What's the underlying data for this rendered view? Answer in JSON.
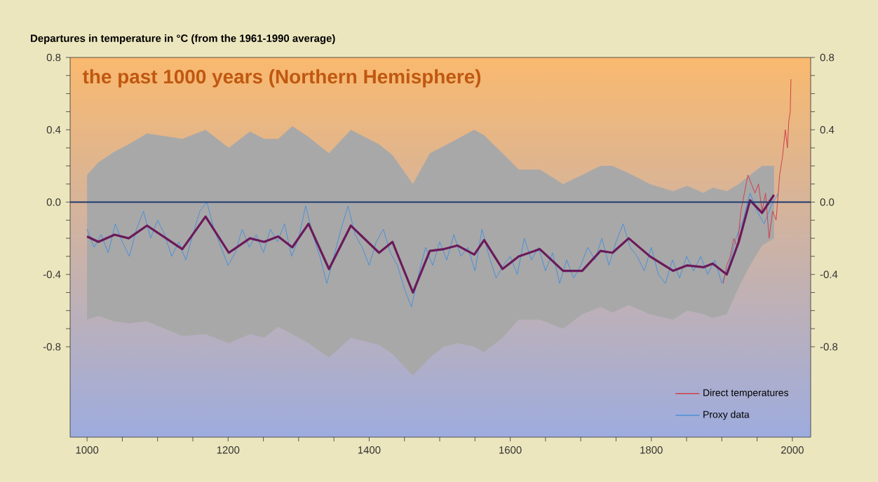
{
  "chart_data": {
    "type": "line",
    "title": "the past 1000 years (Northern Hemisphere)",
    "ylabel": "Departures in temperature in °C (from the 1961-1990 average)",
    "xlim": [
      976,
      2026
    ],
    "ylim": [
      -1.3,
      0.8
    ],
    "y2lim": [
      -1.3,
      0.8
    ],
    "xticks": [
      {
        "value": 1000,
        "label": "1000"
      },
      {
        "value": 1050,
        "label": null
      },
      {
        "value": 1100,
        "label": null
      },
      {
        "value": 1150,
        "label": null
      },
      {
        "value": 1200,
        "label": "1200"
      },
      {
        "value": 1250,
        "label": null
      },
      {
        "value": 1300,
        "label": null
      },
      {
        "value": 1350,
        "label": null
      },
      {
        "value": 1400,
        "label": "1400"
      },
      {
        "value": 1450,
        "label": null
      },
      {
        "value": 1500,
        "label": null
      },
      {
        "value": 1550,
        "label": null
      },
      {
        "value": 1600,
        "label": "1600"
      },
      {
        "value": 1650,
        "label": null
      },
      {
        "value": 1700,
        "label": null
      },
      {
        "value": 1750,
        "label": null
      },
      {
        "value": 1800,
        "label": "1800"
      },
      {
        "value": 1850,
        "label": null
      },
      {
        "value": 1900,
        "label": null
      },
      {
        "value": 1950,
        "label": null
      },
      {
        "value": 2000,
        "label": "2000"
      }
    ],
    "yticks": [
      {
        "value": -0.8,
        "label": "-0.8"
      },
      {
        "value": -0.7,
        "label": null
      },
      {
        "value": -0.6,
        "label": null
      },
      {
        "value": -0.5,
        "label": null
      },
      {
        "value": -0.4,
        "label": "-0.4"
      },
      {
        "value": -0.3,
        "label": null
      },
      {
        "value": -0.2,
        "label": null
      },
      {
        "value": -0.1,
        "label": null
      },
      {
        "value": 0,
        "label": "0.0"
      },
      {
        "value": 0.1,
        "label": null
      },
      {
        "value": 0.2,
        "label": null
      },
      {
        "value": 0.3,
        "label": null
      },
      {
        "value": 0.4,
        "label": "0.4"
      },
      {
        "value": 0.5,
        "label": null
      },
      {
        "value": 0.6,
        "label": null
      },
      {
        "value": 0.7,
        "label": null
      },
      {
        "value": 0.8,
        "label": "0.8"
      }
    ],
    "y2ticks": [
      {
        "value": -0.8,
        "label": "-0.8"
      },
      {
        "value": -0.7,
        "label": null
      },
      {
        "value": -0.6,
        "label": null
      },
      {
        "value": -0.5,
        "label": null
      },
      {
        "value": -0.4,
        "label": "-0.4"
      },
      {
        "value": -0.3,
        "label": null
      },
      {
        "value": -0.2,
        "label": null
      },
      {
        "value": -0.1,
        "label": null
      },
      {
        "value": 0,
        "label": "0.0"
      },
      {
        "value": 0.1,
        "label": null
      },
      {
        "value": 0.2,
        "label": null
      },
      {
        "value": 0.3,
        "label": null
      },
      {
        "value": 0.4,
        "label": "0.4"
      },
      {
        "value": 0.5,
        "label": null
      },
      {
        "value": 0.6,
        "label": null
      },
      {
        "value": 0.7,
        "label": null
      },
      {
        "value": 0.8,
        "label": "0.8"
      }
    ],
    "grid": false,
    "legend": "bottom right",
    "marker": "none",
    "line_style": "solid",
    "ref_lines": [
      {
        "axis": "y",
        "value": 0,
        "color": "#1f3a6e"
      }
    ],
    "series": [
      {
        "name": "Direct temperatures",
        "color": "#d0404a",
        "x": [
          1902,
          1907,
          1912,
          1917,
          1922,
          1927,
          1932,
          1937,
          1942,
          1947,
          1952,
          1957,
          1962,
          1967,
          1972,
          1977,
          1982,
          1986,
          1990,
          1993,
          1995,
          1997,
          1998
        ],
        "values": [
          -0.45,
          -0.35,
          -0.3,
          -0.2,
          -0.25,
          -0.05,
          0.05,
          0.15,
          0.1,
          0.05,
          0.1,
          -0.05,
          0.05,
          -0.2,
          -0.05,
          -0.1,
          0.15,
          0.25,
          0.4,
          0.3,
          0.45,
          0.5,
          0.68
        ]
      },
      {
        "name": "Proxy data",
        "color": "#4a90d9",
        "x": [
          1000,
          1010,
          1020,
          1030,
          1040,
          1050,
          1060,
          1070,
          1080,
          1090,
          1100,
          1110,
          1120,
          1130,
          1140,
          1150,
          1160,
          1170,
          1180,
          1190,
          1200,
          1210,
          1220,
          1230,
          1240,
          1250,
          1260,
          1270,
          1280,
          1290,
          1300,
          1310,
          1320,
          1330,
          1340,
          1350,
          1360,
          1370,
          1380,
          1390,
          1400,
          1410,
          1420,
          1430,
          1440,
          1450,
          1460,
          1470,
          1480,
          1490,
          1500,
          1510,
          1520,
          1530,
          1540,
          1550,
          1560,
          1570,
          1580,
          1590,
          1600,
          1610,
          1620,
          1630,
          1640,
          1650,
          1660,
          1670,
          1680,
          1690,
          1700,
          1710,
          1720,
          1730,
          1740,
          1750,
          1760,
          1770,
          1780,
          1790,
          1800,
          1810,
          1820,
          1830,
          1840,
          1850,
          1860,
          1870,
          1880,
          1890,
          1900,
          1910,
          1920,
          1930,
          1940,
          1950,
          1960,
          1970,
          1980
        ],
        "values": [
          -0.15,
          -0.25,
          -0.18,
          -0.28,
          -0.12,
          -0.22,
          -0.3,
          -0.15,
          -0.05,
          -0.2,
          -0.1,
          -0.18,
          -0.3,
          -0.22,
          -0.32,
          -0.18,
          -0.05,
          0.0,
          -0.15,
          -0.25,
          -0.35,
          -0.28,
          -0.15,
          -0.25,
          -0.18,
          -0.28,
          -0.15,
          -0.22,
          -0.12,
          -0.3,
          -0.2,
          -0.02,
          -0.18,
          -0.3,
          -0.45,
          -0.3,
          -0.15,
          -0.02,
          -0.18,
          -0.25,
          -0.35,
          -0.22,
          -0.15,
          -0.28,
          -0.35,
          -0.48,
          -0.58,
          -0.4,
          -0.25,
          -0.35,
          -0.22,
          -0.32,
          -0.18,
          -0.3,
          -0.25,
          -0.38,
          -0.15,
          -0.3,
          -0.42,
          -0.35,
          -0.3,
          -0.4,
          -0.2,
          -0.32,
          -0.25,
          -0.38,
          -0.28,
          -0.45,
          -0.32,
          -0.42,
          -0.35,
          -0.25,
          -0.32,
          -0.2,
          -0.35,
          -0.22,
          -0.12,
          -0.25,
          -0.3,
          -0.38,
          -0.25,
          -0.4,
          -0.45,
          -0.32,
          -0.42,
          -0.3,
          -0.38,
          -0.3,
          -0.4,
          -0.32,
          -0.45,
          -0.35,
          -0.2,
          -0.1,
          0.05,
          -0.05,
          -0.12,
          -0.02,
          0.05
        ]
      },
      {
        "color": "#6a1a5a",
        "x": [
          1000,
          1016,
          1039,
          1059,
          1085,
          1135,
          1168,
          1201,
          1231,
          1251,
          1271,
          1291,
          1314,
          1343,
          1374,
          1414,
          1433,
          1462,
          1486,
          1506,
          1525,
          1549,
          1563,
          1589,
          1612,
          1642,
          1675,
          1702,
          1728,
          1745,
          1768,
          1798,
          1831,
          1851,
          1874,
          1887,
          1907,
          1924,
          1940,
          1957,
          1974
        ],
        "values": [
          -0.19,
          -0.22,
          -0.18,
          -0.2,
          -0.13,
          -0.26,
          -0.08,
          -0.28,
          -0.2,
          -0.22,
          -0.19,
          -0.25,
          -0.12,
          -0.37,
          -0.13,
          -0.28,
          -0.22,
          -0.5,
          -0.27,
          -0.26,
          -0.24,
          -0.29,
          -0.21,
          -0.37,
          -0.3,
          -0.26,
          -0.38,
          -0.38,
          -0.27,
          -0.28,
          -0.2,
          -0.3,
          -0.38,
          -0.35,
          -0.36,
          -0.34,
          -0.4,
          -0.22,
          0.01,
          -0.06,
          0.04
        ],
        "lower": [
          -0.65,
          -0.63,
          -0.66,
          -0.67,
          -0.66,
          -0.74,
          -0.73,
          -0.78,
          -0.73,
          -0.75,
          -0.69,
          -0.73,
          -0.78,
          -0.86,
          -0.75,
          -0.79,
          -0.84,
          -0.96,
          -0.86,
          -0.8,
          -0.78,
          -0.8,
          -0.83,
          -0.75,
          -0.65,
          -0.65,
          -0.7,
          -0.62,
          -0.58,
          -0.61,
          -0.57,
          -0.62,
          -0.65,
          -0.6,
          -0.62,
          -0.64,
          -0.62,
          -0.47,
          -0.35,
          -0.24,
          -0.2
        ],
        "upper": [
          0.15,
          0.22,
          0.28,
          0.32,
          0.38,
          0.35,
          0.4,
          0.3,
          0.39,
          0.35,
          0.35,
          0.42,
          0.36,
          0.27,
          0.4,
          0.32,
          0.26,
          0.1,
          0.27,
          0.31,
          0.35,
          0.4,
          0.37,
          0.27,
          0.18,
          0.18,
          0.1,
          0.15,
          0.2,
          0.2,
          0.16,
          0.1,
          0.06,
          0.09,
          0.05,
          0.08,
          0.06,
          0.1,
          0.15,
          0.2,
          0.2
        ]
      }
    ]
  }
}
